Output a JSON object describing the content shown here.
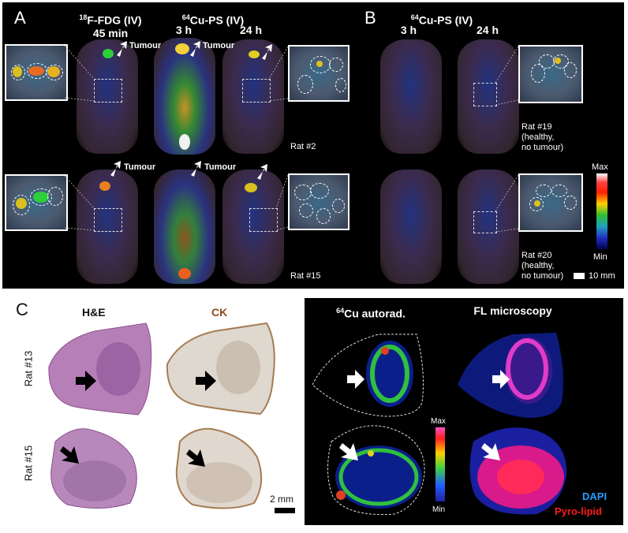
{
  "panels": {
    "A": {
      "label": "A",
      "headers": {
        "fdg_line1": "F-FDG (IV)",
        "fdg_sup": "18",
        "fdg_line2": "45 min",
        "cu_line1": "Cu-PS (IV)",
        "cu_sup": "64",
        "cu_t1": "3 h",
        "cu_t2": "24 h"
      },
      "tumour_labels": [
        "Tumour",
        "Tumour",
        "Tumour",
        "Tumour"
      ],
      "rat_labels": [
        "Rat #2",
        "Rat #15"
      ]
    },
    "B": {
      "label": "B",
      "headers": {
        "cu_line1": "Cu-PS (IV)",
        "cu_sup": "64",
        "t1": "3 h",
        "t2": "24 h"
      },
      "rat_labels": [
        [
          "Rat #19",
          "(healthy,",
          "no tumour)"
        ],
        [
          "Rat #20",
          "(healthy,",
          "no tumour)"
        ]
      ],
      "colorbar": {
        "max": "Max",
        "min": "Min"
      },
      "scale": "10 mm"
    },
    "C": {
      "label": "C",
      "headers": {
        "he": "H&E",
        "ck": "CK",
        "autorad_sup": "64",
        "autorad": "Cu autorad.",
        "fl": "FL microscopy"
      },
      "rows": [
        "Rat #13",
        "Rat #15"
      ],
      "scale": "2 mm",
      "colorbar": {
        "max": "Max",
        "min": "Min"
      },
      "legend": {
        "dapi": "DAPI",
        "pyro": "Pyro-lipid"
      },
      "colors": {
        "ck_header": "#8b4a1e",
        "dapi": "#2a9cff",
        "pyro": "#ff1a1a"
      }
    }
  }
}
